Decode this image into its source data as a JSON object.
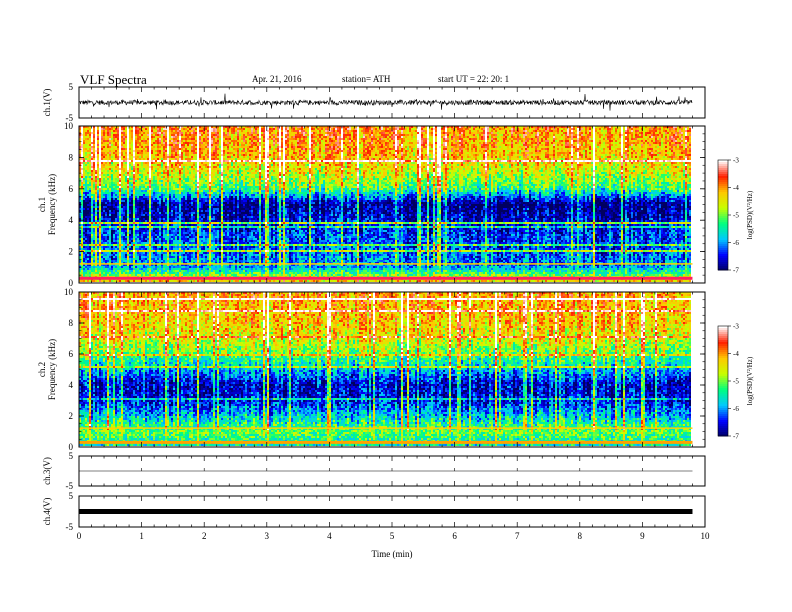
{
  "header": {
    "title": "VLF  Spectra",
    "date": "Apr. 21, 2016",
    "station": "station= ATH",
    "start_ut": "start  UT  =    22: 20: 1"
  },
  "chart_data": [
    {
      "type": "line",
      "title": "",
      "ylabel": "ch.1(V)",
      "ylim": [
        -5,
        5
      ],
      "yticks": [
        "5",
        "-5"
      ],
      "xlim": [
        0,
        10
      ],
      "baseline": 0.0,
      "noise_amplitude": 1.2
    },
    {
      "type": "heatmap",
      "ylabel": "ch.1\nFrequency  (kHz)",
      "ylim": [
        0,
        10
      ],
      "yticks": [
        "0",
        "2",
        "4",
        "6",
        "8",
        "10"
      ],
      "xlim": [
        0,
        10
      ],
      "colorbar": {
        "label": "log(PSD)(V²/Hz)",
        "range": [
          -7,
          -3
        ],
        "ticks": [
          "-7",
          "-6",
          "-5",
          "-4",
          "-3"
        ],
        "colors": [
          "#000060",
          "#0000ff",
          "#00c8ff",
          "#00ff80",
          "#c8ff00",
          "#ffc800",
          "#ff2000",
          "#ffffff"
        ]
      },
      "profile_khz": [
        0,
        1,
        2,
        3,
        4,
        5,
        6,
        7,
        8,
        9,
        10
      ],
      "profile_log_psd": [
        -4.2,
        -6.0,
        -6.2,
        -6.3,
        -6.6,
        -6.9,
        -5.2,
        -4.6,
        -4.2,
        -4.0,
        -3.9
      ]
    },
    {
      "type": "heatmap",
      "ylabel": "ch.2\nFrequency  (kHz)",
      "ylim": [
        0,
        10
      ],
      "yticks": [
        "0",
        "2",
        "4",
        "6",
        "8",
        "10"
      ],
      "xlim": [
        0,
        10
      ],
      "colorbar": {
        "label": "log(PSD)(V²/Hz)",
        "range": [
          -7,
          -3
        ],
        "ticks": [
          "-7",
          "-6",
          "-5",
          "-4",
          "-3"
        ],
        "colors": [
          "#000060",
          "#0000ff",
          "#00c8ff",
          "#00ff80",
          "#c8ff00",
          "#ffc800",
          "#ff2000",
          "#ffffff"
        ]
      },
      "profile_khz": [
        0,
        1,
        2,
        3,
        4,
        5,
        6,
        7,
        8,
        9,
        10
      ],
      "profile_log_psd": [
        -5.6,
        -5.0,
        -5.8,
        -6.5,
        -6.6,
        -5.8,
        -5.0,
        -4.5,
        -4.2,
        -4.1,
        -4.0
      ]
    },
    {
      "type": "line",
      "ylabel": "ch.3(V)",
      "ylim": [
        -5,
        5
      ],
      "yticks": [
        "5",
        "-5"
      ],
      "xlim": [
        0,
        10
      ],
      "baseline": 0.0,
      "noise_amplitude": 0.0
    },
    {
      "type": "line",
      "ylabel": "ch.4(V)",
      "ylim": [
        -5,
        5
      ],
      "yticks": [
        "5",
        "-5"
      ],
      "xlim": [
        0,
        10
      ],
      "baseline": 0.0,
      "noise_amplitude": 0.0,
      "thick": true
    }
  ],
  "xaxis": {
    "label": "Time  (min)",
    "ticks": [
      "0",
      "1",
      "2",
      "3",
      "4",
      "5",
      "6",
      "7",
      "8",
      "9",
      "10"
    ],
    "range": [
      0,
      10
    ],
    "data_end": 9.8
  }
}
